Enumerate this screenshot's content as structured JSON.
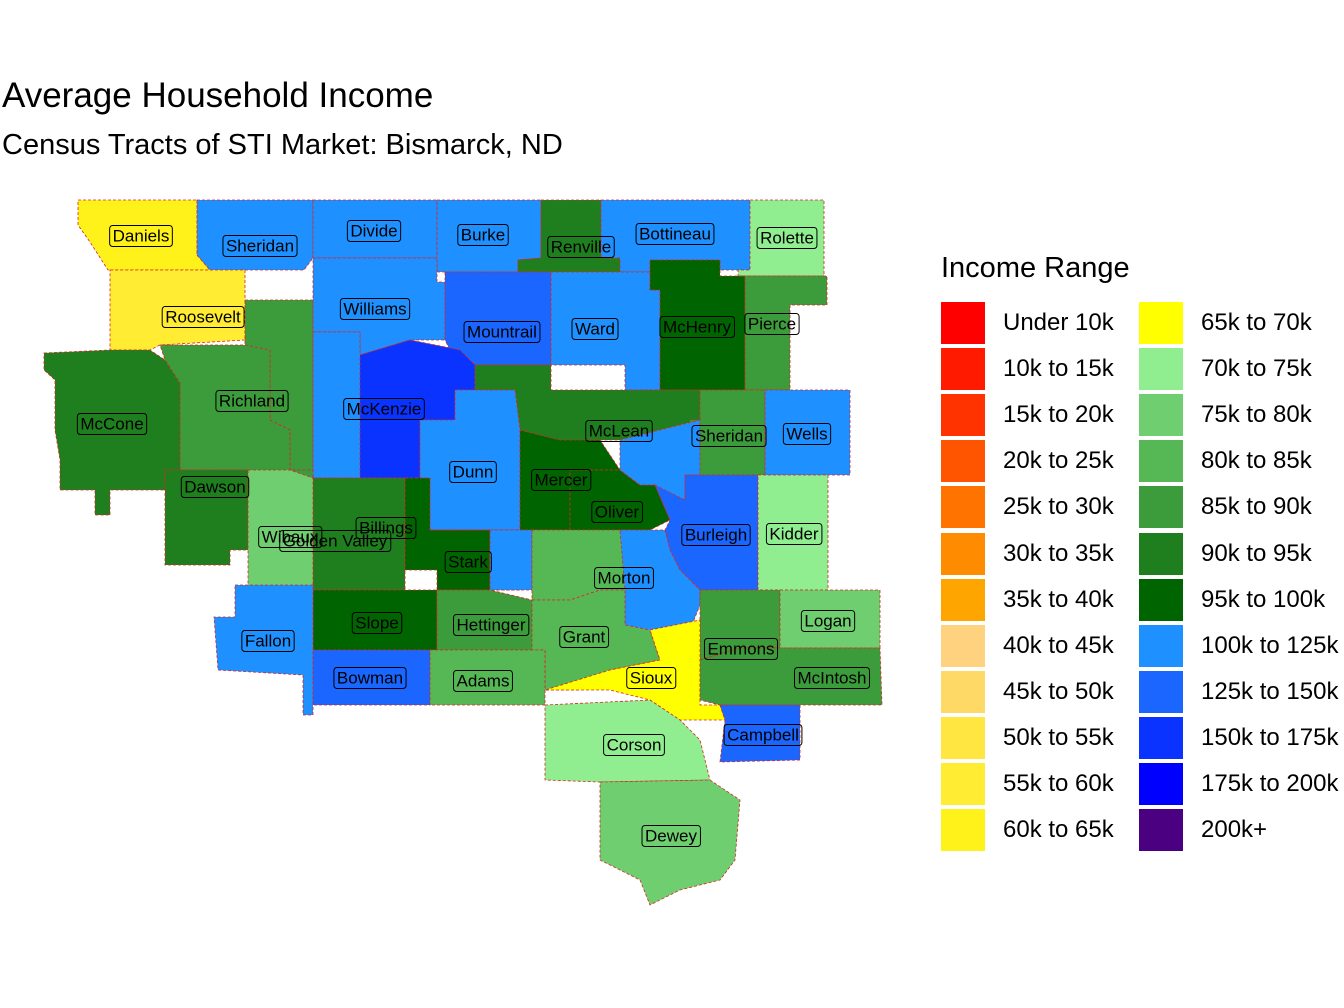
{
  "title": "Average Household Income",
  "subtitle": "Census Tracts of STI Market: Bismarck, ND",
  "legend": {
    "title": "Income Range",
    "items": [
      {
        "label": "Under 10k",
        "color": "#ff0000"
      },
      {
        "label": "10k to 15k",
        "color": "#ff1a00"
      },
      {
        "label": "15k to 20k",
        "color": "#ff3300"
      },
      {
        "label": "20k to 25k",
        "color": "#ff5500"
      },
      {
        "label": "25k to 30k",
        "color": "#ff7300"
      },
      {
        "label": "30k to 35k",
        "color": "#ff8c00"
      },
      {
        "label": "35k to 40k",
        "color": "#ffa500"
      },
      {
        "label": "40k to 45k",
        "color": "#ffd27f"
      },
      {
        "label": "45k to 50k",
        "color": "#ffd966"
      },
      {
        "label": "50k to 55k",
        "color": "#ffe640"
      },
      {
        "label": "55k to 60k",
        "color": "#ffec33"
      },
      {
        "label": "60k to 65k",
        "color": "#fff21a"
      },
      {
        "label": "65k to 70k",
        "color": "#ffff00"
      },
      {
        "label": "70k to 75k",
        "color": "#90ee90"
      },
      {
        "label": "75k to 80k",
        "color": "#6fce6f"
      },
      {
        "label": "80k to 85k",
        "color": "#55b855"
      },
      {
        "label": "85k to 90k",
        "color": "#3c9c3c"
      },
      {
        "label": "90k to 95k",
        "color": "#1f7f1f"
      },
      {
        "label": "95k to 100k",
        "color": "#006400"
      },
      {
        "label": "100k to 125k",
        "color": "#1e90ff"
      },
      {
        "label": "125k to 150k",
        "color": "#1a66ff"
      },
      {
        "label": "150k to 175k",
        "color": "#0a33ff"
      },
      {
        "label": "175k to 200k",
        "color": "#0000ff"
      },
      {
        "label": "200k+",
        "color": "#4b0082"
      }
    ]
  },
  "counties": [
    {
      "name": "Daniels",
      "range": "60k to 65k"
    },
    {
      "name": "Sheridan",
      "range": "100k to 125k"
    },
    {
      "name": "Divide",
      "range": "100k to 125k"
    },
    {
      "name": "Burke",
      "range": "100k to 125k"
    },
    {
      "name": "Renville",
      "range": "90k to 95k"
    },
    {
      "name": "Bottineau",
      "range": "100k to 125k"
    },
    {
      "name": "Rolette",
      "range": "70k to 75k"
    },
    {
      "name": "Roosevelt",
      "range": "55k to 60k"
    },
    {
      "name": "Williams",
      "range": "100k to 125k"
    },
    {
      "name": "Mountrail",
      "range": "125k to 150k"
    },
    {
      "name": "Ward",
      "range": "100k to 125k"
    },
    {
      "name": "McHenry",
      "range": "95k to 100k"
    },
    {
      "name": "Pierce",
      "range": "85k to 90k"
    },
    {
      "name": "Richland",
      "range": "85k to 90k"
    },
    {
      "name": "McCone",
      "range": "90k to 95k"
    },
    {
      "name": "McKenzie",
      "range": "150k to 175k"
    },
    {
      "name": "McLean",
      "range": "90k to 95k"
    },
    {
      "name": "Sheridan",
      "range": "85k to 90k"
    },
    {
      "name": "Wells",
      "range": "100k to 125k"
    },
    {
      "name": "Dunn",
      "range": "100k to 125k"
    },
    {
      "name": "Mercer",
      "range": "95k to 100k"
    },
    {
      "name": "Dawson",
      "range": "90k to 95k"
    },
    {
      "name": "Oliver",
      "range": "95k to 100k"
    },
    {
      "name": "Billings",
      "range": "90k to 95k"
    },
    {
      "name": "Wibaux",
      "range": "75k to 80k"
    },
    {
      "name": "Golden Valley",
      "range": "90k to 95k"
    },
    {
      "name": "Burleigh",
      "range": "125k to 150k"
    },
    {
      "name": "Kidder",
      "range": "70k to 75k"
    },
    {
      "name": "Stark",
      "range": "100k to 125k"
    },
    {
      "name": "Morton",
      "range": "100k to 125k"
    },
    {
      "name": "Slope",
      "range": "95k to 100k"
    },
    {
      "name": "Hettinger",
      "range": "85k to 90k"
    },
    {
      "name": "Grant",
      "range": "80k to 85k"
    },
    {
      "name": "Logan",
      "range": "75k to 80k"
    },
    {
      "name": "Fallon",
      "range": "100k to 125k"
    },
    {
      "name": "Emmons",
      "range": "85k to 90k"
    },
    {
      "name": "Bowman",
      "range": "125k to 150k"
    },
    {
      "name": "Adams",
      "range": "80k to 85k"
    },
    {
      "name": "Sioux",
      "range": "65k to 70k"
    },
    {
      "name": "McIntosh",
      "range": "85k to 90k"
    },
    {
      "name": "Campbell",
      "range": "125k to 150k"
    },
    {
      "name": "Corson",
      "range": "70k to 75k"
    },
    {
      "name": "Dewey",
      "range": "75k to 80k"
    }
  ]
}
